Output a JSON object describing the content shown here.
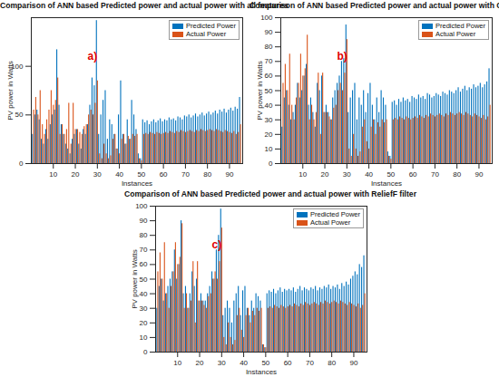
{
  "chart_data": [
    {
      "type": "bar",
      "title": "Comparison of ANN based Predicted power and actual power with all features",
      "annotation": "a)",
      "x_label": "Instances",
      "y_label": "PV power in Watts",
      "x": [
        1,
        2,
        3,
        4,
        5,
        6,
        7,
        8,
        9,
        10,
        11,
        12,
        13,
        14,
        15,
        16,
        17,
        18,
        19,
        20,
        21,
        22,
        23,
        24,
        25,
        26,
        27,
        28,
        29,
        30,
        31,
        32,
        33,
        34,
        35,
        36,
        37,
        38,
        39,
        40,
        41,
        42,
        43,
        44,
        45,
        46,
        47,
        48,
        49,
        50,
        51,
        52,
        53,
        54,
        55,
        56,
        57,
        58,
        59,
        60,
        61,
        62,
        63,
        64,
        65,
        66,
        67,
        68,
        69,
        70,
        71,
        72,
        73,
        74,
        75,
        76,
        77,
        78,
        79,
        80,
        81,
        82,
        83,
        84,
        85,
        86,
        87,
        88,
        89,
        90,
        91,
        92,
        93,
        94,
        95
      ],
      "series": [
        {
          "name": "Predicted Power",
          "color": "#0072BD",
          "values": [
            30,
            50,
            55,
            45,
            25,
            20,
            35,
            25,
            40,
            50,
            55,
            117,
            60,
            40,
            30,
            20,
            15,
            10,
            25,
            30,
            35,
            20,
            15,
            35,
            30,
            40,
            60,
            88,
            80,
            147,
            30,
            50,
            65,
            75,
            25,
            45,
            40,
            30,
            15,
            50,
            85,
            30,
            20,
            45,
            25,
            65,
            50,
            35,
            10,
            5,
            45,
            42,
            44,
            40,
            43,
            45,
            42,
            44,
            46,
            43,
            45,
            44,
            47,
            45,
            46,
            44,
            48,
            47,
            45,
            49,
            48,
            50,
            47,
            49,
            51,
            48,
            50,
            52,
            49,
            51,
            53,
            50,
            52,
            54,
            51,
            55,
            53,
            56,
            52,
            55,
            57,
            54,
            58,
            56,
            68
          ]
        },
        {
          "name": "Actual Power",
          "color": "#D95319",
          "values": [
            55,
            68,
            50,
            75,
            40,
            30,
            45,
            55,
            75,
            60,
            65,
            88,
            30,
            40,
            30,
            35,
            62,
            20,
            62,
            35,
            35,
            32,
            30,
            38,
            40,
            50,
            55,
            50,
            62,
            85,
            10,
            5,
            20,
            10,
            5,
            8,
            25,
            30,
            15,
            10,
            25,
            30,
            20,
            28,
            25,
            30,
            28,
            30,
            5,
            3,
            30,
            31,
            30,
            32,
            31,
            30,
            32,
            31,
            30,
            31,
            32,
            31,
            33,
            32,
            31,
            33,
            32,
            34,
            33,
            32,
            33,
            34,
            33,
            32,
            34,
            33,
            35,
            34,
            33,
            34,
            35,
            34,
            33,
            35,
            34,
            33,
            32,
            34,
            33,
            32,
            31,
            33,
            30,
            32,
            40
          ]
        }
      ],
      "xlim": [
        0,
        96
      ],
      "xticks": [
        10,
        20,
        30,
        40,
        50,
        60,
        70,
        80,
        90
      ],
      "ylim": [
        0,
        150
      ],
      "yticks": [
        0,
        50,
        100
      ],
      "grid": false,
      "legend": "upper right"
    },
    {
      "type": "bar",
      "title": "Comparison of ANN based Predicted power and actual power with CFS filter",
      "annotation": "b)",
      "x_label": "Instances",
      "y_label": "PV power in Watts",
      "x": [
        1,
        2,
        3,
        4,
        5,
        6,
        7,
        8,
        9,
        10,
        11,
        12,
        13,
        14,
        15,
        16,
        17,
        18,
        19,
        20,
        21,
        22,
        23,
        24,
        25,
        26,
        27,
        28,
        29,
        30,
        31,
        32,
        33,
        34,
        35,
        36,
        37,
        38,
        39,
        40,
        41,
        42,
        43,
        44,
        45,
        46,
        47,
        48,
        49,
        50,
        51,
        52,
        53,
        54,
        55,
        56,
        57,
        58,
        59,
        60,
        61,
        62,
        63,
        64,
        65,
        66,
        67,
        68,
        69,
        70,
        71,
        72,
        73,
        74,
        75,
        76,
        77,
        78,
        79,
        80,
        81,
        82,
        83,
        84,
        85,
        86,
        87,
        88,
        89,
        90,
        91,
        92,
        93,
        94,
        95
      ],
      "series": [
        {
          "name": "Predicted Power",
          "color": "#0072BD",
          "values": [
            25,
            45,
            50,
            40,
            30,
            35,
            40,
            55,
            45,
            50,
            60,
            68,
            40,
            45,
            35,
            25,
            55,
            50,
            60,
            35,
            40,
            35,
            30,
            45,
            50,
            55,
            60,
            70,
            72,
            95,
            35,
            45,
            50,
            55,
            30,
            45,
            40,
            50,
            35,
            48,
            55,
            40,
            30,
            45,
            35,
            50,
            45,
            40,
            8,
            5,
            42,
            43,
            40,
            44,
            42,
            45,
            43,
            44,
            42,
            46,
            45,
            44,
            47,
            45,
            46,
            44,
            48,
            47,
            45,
            46,
            48,
            47,
            46,
            49,
            48,
            47,
            50,
            49,
            48,
            50,
            52,
            49,
            51,
            53,
            50,
            52,
            51,
            54,
            52,
            53,
            55,
            52,
            54,
            56,
            65
          ]
        },
        {
          "name": "Actual Power",
          "color": "#D95319",
          "values": [
            55,
            68,
            50,
            75,
            40,
            30,
            45,
            55,
            75,
            60,
            65,
            88,
            30,
            40,
            30,
            35,
            62,
            20,
            62,
            35,
            35,
            32,
            30,
            38,
            40,
            50,
            55,
            50,
            62,
            85,
            10,
            5,
            20,
            10,
            5,
            8,
            25,
            30,
            15,
            10,
            25,
            30,
            20,
            28,
            25,
            30,
            28,
            30,
            5,
            3,
            30,
            31,
            30,
            32,
            31,
            30,
            32,
            31,
            30,
            31,
            32,
            31,
            33,
            32,
            31,
            33,
            32,
            34,
            33,
            32,
            33,
            34,
            33,
            32,
            34,
            33,
            35,
            34,
            33,
            34,
            35,
            34,
            33,
            35,
            34,
            33,
            32,
            34,
            33,
            32,
            31,
            33,
            30,
            32,
            40
          ]
        }
      ],
      "xlim": [
        0,
        96
      ],
      "xticks": [
        10,
        20,
        30,
        40,
        50,
        60,
        70,
        80,
        90
      ],
      "ylim": [
        0,
        100
      ],
      "yticks": [
        0,
        10,
        20,
        30,
        40,
        50,
        60,
        70,
        80,
        90,
        100
      ],
      "grid": false,
      "legend": "upper right"
    },
    {
      "type": "bar",
      "title": "Comparison of ANN based Predicted power and actual power with ReliefF filter",
      "annotation": "c)",
      "x_label": "Instances",
      "y_label": "PV power in Watts",
      "x": [
        1,
        2,
        3,
        4,
        5,
        6,
        7,
        8,
        9,
        10,
        11,
        12,
        13,
        14,
        15,
        16,
        17,
        18,
        19,
        20,
        21,
        22,
        23,
        24,
        25,
        26,
        27,
        28,
        29,
        30,
        31,
        32,
        33,
        34,
        35,
        36,
        37,
        38,
        39,
        40,
        41,
        42,
        43,
        44,
        45,
        46,
        47,
        48,
        49,
        50,
        51,
        52,
        53,
        54,
        55,
        56,
        57,
        58,
        59,
        60,
        61,
        62,
        63,
        64,
        65,
        66,
        67,
        68,
        69,
        70,
        71,
        72,
        73,
        74,
        75,
        76,
        77,
        78,
        79,
        80,
        81,
        82,
        83,
        84,
        85,
        86,
        87,
        88,
        89,
        90,
        91,
        92,
        93,
        94,
        95
      ],
      "series": [
        {
          "name": "Predicted Power",
          "color": "#0072BD",
          "values": [
            30,
            45,
            50,
            35,
            40,
            45,
            50,
            55,
            70,
            50,
            60,
            90,
            40,
            45,
            30,
            40,
            55,
            45,
            50,
            35,
            40,
            35,
            35,
            40,
            45,
            55,
            50,
            70,
            80,
            98,
            25,
            30,
            35,
            30,
            20,
            35,
            40,
            45,
            25,
            42,
            45,
            30,
            25,
            35,
            30,
            40,
            38,
            35,
            5,
            3,
            40,
            42,
            41,
            43,
            40,
            42,
            44,
            41,
            43,
            42,
            43,
            42,
            44,
            41,
            43,
            45,
            42,
            44,
            43,
            42,
            44,
            43,
            45,
            42,
            44,
            43,
            45,
            44,
            46,
            43,
            45,
            44,
            46,
            43,
            47,
            45,
            48,
            46,
            50,
            52,
            55,
            53,
            60,
            58,
            66
          ]
        },
        {
          "name": "Actual Power",
          "color": "#D95319",
          "values": [
            55,
            68,
            50,
            75,
            40,
            30,
            45,
            55,
            75,
            60,
            65,
            88,
            30,
            40,
            30,
            35,
            62,
            20,
            62,
            35,
            35,
            32,
            30,
            38,
            40,
            50,
            55,
            50,
            62,
            85,
            10,
            5,
            20,
            10,
            5,
            8,
            25,
            30,
            15,
            10,
            25,
            30,
            20,
            28,
            25,
            30,
            28,
            30,
            5,
            3,
            30,
            31,
            30,
            32,
            31,
            30,
            32,
            31,
            30,
            31,
            32,
            31,
            33,
            32,
            31,
            33,
            32,
            34,
            33,
            32,
            33,
            34,
            33,
            32,
            34,
            33,
            35,
            34,
            33,
            34,
            35,
            34,
            33,
            35,
            34,
            33,
            32,
            34,
            33,
            32,
            31,
            33,
            30,
            32,
            40
          ]
        }
      ],
      "xlim": [
        0,
        96
      ],
      "xticks": [
        10,
        20,
        30,
        40,
        50,
        60,
        70,
        80,
        90
      ],
      "ylim": [
        0,
        100
      ],
      "yticks": [
        0,
        10,
        20,
        30,
        40,
        50,
        60,
        70,
        80,
        90,
        100
      ],
      "grid": false,
      "legend": "upper right"
    }
  ]
}
